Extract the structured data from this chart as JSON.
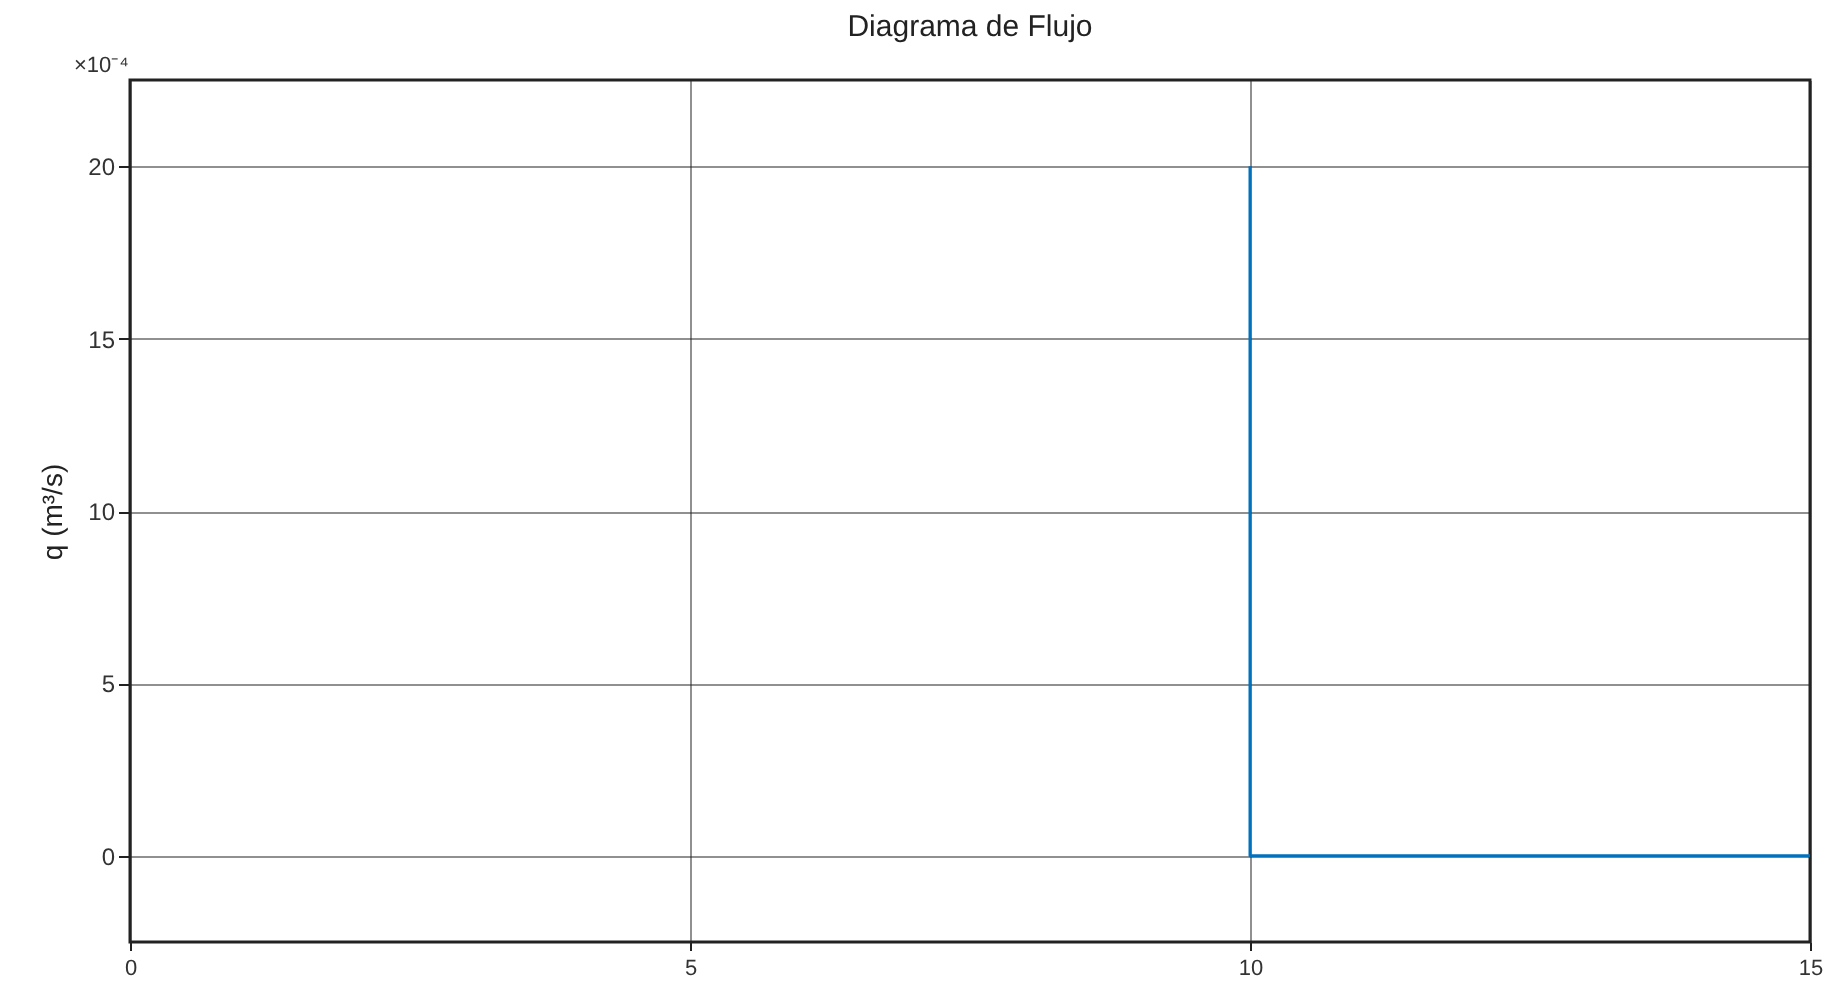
{
  "chart_data": {
    "type": "step",
    "title": "Diagrama de Flujo",
    "ylabel": "q (m³/s)",
    "annotations": [
      "×10⁻⁴"
    ],
    "x": [
      10,
      15
    ],
    "series": [
      {
        "color": "#0072bd",
        "values": [
          20,
          0
        ]
      }
    ],
    "xlim": [
      0,
      15
    ],
    "xticks": [
      0,
      5,
      10,
      15
    ],
    "ylim": [
      -2.5,
      22.5
    ],
    "yticks": [
      0,
      5,
      10,
      15,
      20
    ],
    "grid": true,
    "line_style": "solid",
    "marker": "none"
  }
}
